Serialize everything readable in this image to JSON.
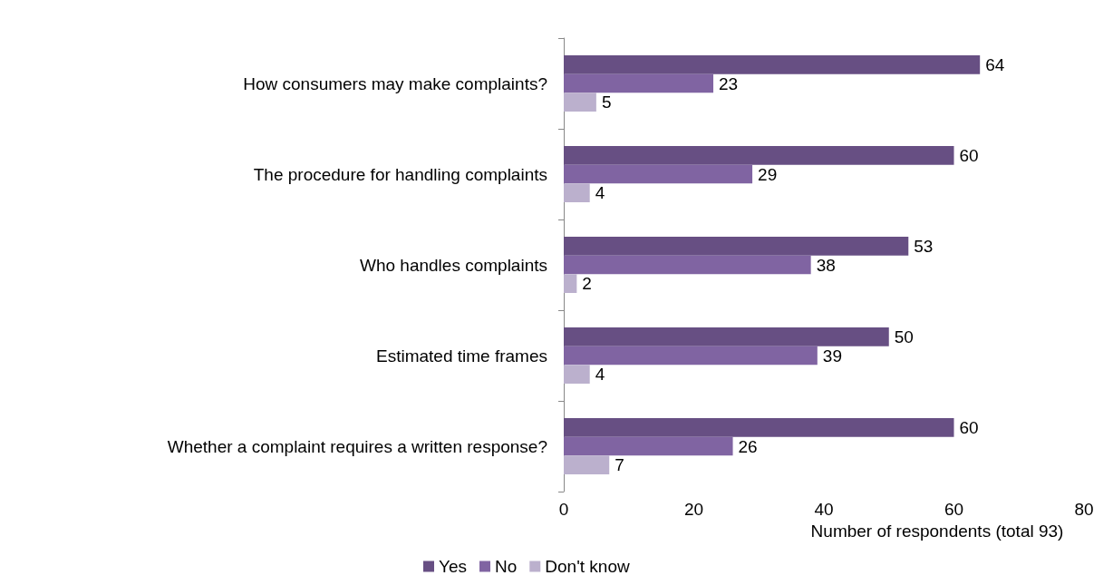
{
  "chart_data": {
    "type": "bar",
    "orientation": "horizontal",
    "xlabel": "Number of respondents (total 93)",
    "categories": [
      "How consumers may make complaints?",
      "The procedure for handling complaints",
      "Who handles complaints",
      "Estimated time frames",
      "Whether a complaint requires a written response?"
    ],
    "series": [
      {
        "name": "Yes",
        "color": "#674f83",
        "values": [
          64,
          60,
          53,
          50,
          60
        ]
      },
      {
        "name": "No",
        "color": "#8064a2",
        "values": [
          23,
          29,
          38,
          39,
          26
        ]
      },
      {
        "name": "Don't know",
        "color": "#bbb0cd",
        "values": [
          5,
          4,
          2,
          4,
          7
        ]
      }
    ],
    "xlim": [
      0,
      80
    ],
    "xticks": [
      0,
      20,
      40,
      60,
      80
    ],
    "data_labels": true,
    "grid": false,
    "legend": "bottom"
  }
}
